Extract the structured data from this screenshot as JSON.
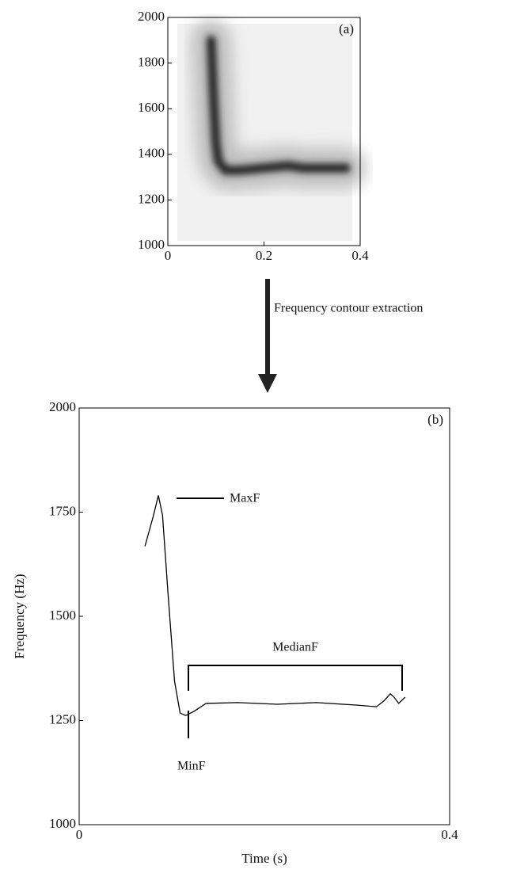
{
  "transition_label": "Frequency contour extraction",
  "chart_data": [
    {
      "type": "spectrogram",
      "panel_label": "(a)",
      "x": [
        0.09,
        0.092,
        0.095,
        0.1,
        0.105,
        0.12,
        0.15,
        0.2,
        0.25,
        0.28,
        0.3,
        0.34,
        0.37
      ],
      "series": [
        {
          "name": null,
          "color": "#2a2a2a",
          "values": [
            1900,
            1800,
            1650,
            1450,
            1370,
            1330,
            1330,
            1340,
            1350,
            1340,
            1340,
            1340,
            1340
          ]
        }
      ],
      "xlim": [
        0,
        0.4
      ],
      "xticks": [
        0,
        0.2,
        0.4
      ],
      "ylim": [
        1000,
        2000
      ],
      "yticks": [
        1000,
        1200,
        1400,
        1600,
        1800,
        2000
      ]
    },
    {
      "type": "line",
      "panel_label": "(b)",
      "x_label": "Time (s)",
      "y_label": "Frequency (Hz)",
      "x": [
        0.071,
        0.08,
        0.0855,
        0.09,
        0.096,
        0.103,
        0.109,
        0.115,
        0.124,
        0.137,
        0.171,
        0.214,
        0.256,
        0.299,
        0.321,
        0.329,
        0.336,
        0.34,
        0.345,
        0.352
      ],
      "series": [
        {
          "name": null,
          "color": "#000000",
          "values": [
            1668,
            1740,
            1790,
            1743,
            1553,
            1344,
            1268,
            1262,
            1272,
            1291,
            1293,
            1289,
            1293,
            1287,
            1283,
            1297,
            1314,
            1306,
            1291,
            1306
          ]
        }
      ],
      "annotations": [
        "MaxF",
        "MedianF",
        "MinF"
      ],
      "xlim": [
        0,
        0.4
      ],
      "xticks": [
        0,
        0.4
      ],
      "ylim": [
        1000,
        2000
      ],
      "yticks": [
        1000,
        1250,
        1500,
        1750,
        2000
      ]
    }
  ]
}
